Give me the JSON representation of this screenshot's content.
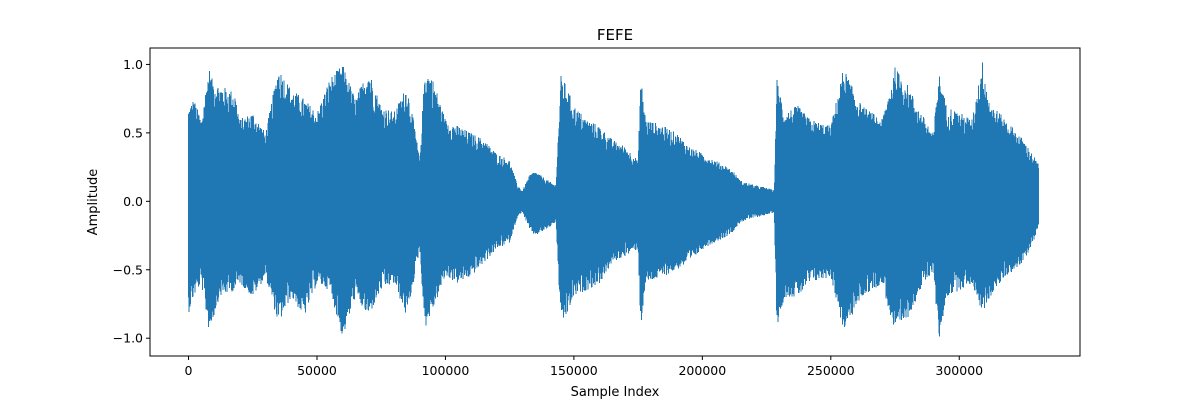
{
  "chart_data": {
    "type": "line",
    "title": "FEFE",
    "xlabel": "Sample Index",
    "ylabel": "Amplitude",
    "xlim": [
      -15000,
      347000
    ],
    "ylim": [
      -1.13,
      1.12
    ],
    "x_ticks": [
      0,
      50000,
      100000,
      150000,
      200000,
      250000,
      300000
    ],
    "x_tick_labels": [
      "0",
      "50000",
      "100000",
      "150000",
      "200000",
      "250000",
      "300000"
    ],
    "y_ticks": [
      1.0,
      0.5,
      0.0,
      -0.5,
      -1.0
    ],
    "y_tick_labels": [
      "1.0",
      "0.5",
      "0.0",
      "−0.5",
      "−1.0"
    ],
    "grid": false,
    "legend": "none",
    "series": [
      {
        "color": "#1f77b4",
        "n_samples": 331000,
        "envelope_x": [
          0,
          2000,
          5000,
          8000,
          9000,
          12000,
          18000,
          20000,
          25000,
          30000,
          35000,
          40000,
          45000,
          50000,
          55000,
          60000,
          65000,
          70000,
          75000,
          80000,
          85000,
          88000,
          90000,
          92000,
          95000,
          100000,
          105000,
          110000,
          115000,
          120000,
          125000,
          128000,
          130000,
          133000,
          135000,
          140000,
          143000,
          145000,
          147000,
          150000,
          155000,
          160000,
          165000,
          170000,
          175000,
          176000,
          178000,
          185000,
          190000,
          195000,
          200000,
          205000,
          210000,
          212000,
          215000,
          220000,
          225000,
          228000,
          229000,
          232000,
          237000,
          242000,
          250000,
          255000,
          258000,
          262000,
          270000,
          275000,
          280000,
          285000,
          290000,
          292000,
          295000,
          300000,
          305000,
          309000,
          312000,
          318000,
          325000,
          331000
        ],
        "envelope_max": [
          0.68,
          0.75,
          0.6,
          0.98,
          0.9,
          0.85,
          0.8,
          0.6,
          0.65,
          0.5,
          0.98,
          0.82,
          0.75,
          0.65,
          0.9,
          1.0,
          0.75,
          0.97,
          0.7,
          0.65,
          0.85,
          0.55,
          0.3,
          0.97,
          0.9,
          0.6,
          0.55,
          0.5,
          0.45,
          0.35,
          0.3,
          0.12,
          0.08,
          0.2,
          0.22,
          0.15,
          0.12,
          0.92,
          0.85,
          0.7,
          0.6,
          0.55,
          0.45,
          0.4,
          0.3,
          0.92,
          0.6,
          0.55,
          0.5,
          0.4,
          0.35,
          0.3,
          0.25,
          0.22,
          0.15,
          0.12,
          0.1,
          0.08,
          0.9,
          0.65,
          0.7,
          0.6,
          0.55,
          0.98,
          0.85,
          0.7,
          0.6,
          0.98,
          0.85,
          0.65,
          0.5,
          0.95,
          0.7,
          0.65,
          0.6,
          1.03,
          0.72,
          0.6,
          0.45,
          0.27
        ],
        "envelope_min": [
          -0.82,
          -0.7,
          -0.6,
          -0.95,
          -0.9,
          -0.7,
          -0.65,
          -0.6,
          -0.7,
          -0.55,
          -0.9,
          -0.7,
          -0.85,
          -0.6,
          -0.65,
          -1.0,
          -0.7,
          -0.85,
          -0.65,
          -0.6,
          -0.85,
          -0.55,
          -0.35,
          -0.93,
          -0.8,
          -0.55,
          -0.6,
          -0.55,
          -0.45,
          -0.35,
          -0.3,
          -0.12,
          -0.08,
          -0.22,
          -0.25,
          -0.2,
          -0.15,
          -0.92,
          -0.85,
          -0.7,
          -0.65,
          -0.6,
          -0.45,
          -0.4,
          -0.35,
          -0.93,
          -0.6,
          -0.55,
          -0.5,
          -0.45,
          -0.35,
          -0.3,
          -0.25,
          -0.22,
          -0.15,
          -0.12,
          -0.1,
          -0.08,
          -0.92,
          -0.7,
          -0.7,
          -0.6,
          -0.55,
          -0.95,
          -0.85,
          -0.7,
          -0.6,
          -0.98,
          -0.85,
          -0.65,
          -0.5,
          -1.04,
          -0.7,
          -0.65,
          -0.6,
          -0.82,
          -0.7,
          -0.55,
          -0.45,
          -0.2
        ]
      }
    ]
  }
}
